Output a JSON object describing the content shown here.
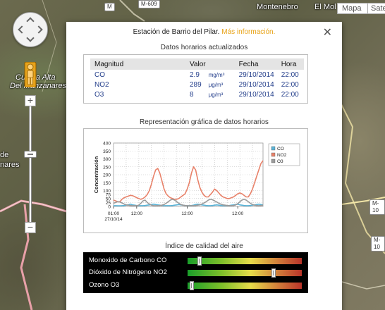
{
  "map": {
    "labels": {
      "montenebro": "Montenebro",
      "el_mol": "El Mol",
      "alta": "Cuesta Alta",
      "manzanares": "Del Manzanares",
      "de": "de",
      "nares": "nares"
    },
    "badges": {
      "m609": "M-609",
      "m10a": "M-10",
      "m10b": "M-10",
      "mtop": "M"
    },
    "map_types": {
      "mapa": "Mapa",
      "satelite": "Sate"
    },
    "zoom": {
      "plus": "+",
      "minus": "−"
    }
  },
  "infowindow": {
    "title": "Estación de Barrio del Pilar.",
    "more_info_link": "Más información.",
    "close_symbol": "✕",
    "hourly": {
      "section_title": "Datos horarios actualizados",
      "headers": {
        "magnitude": "Magnitud",
        "value": "Valor",
        "date": "Fecha",
        "hour": "Hora"
      },
      "rows": [
        {
          "magnitude": "CO",
          "value": "2.9",
          "unit": "mg/m³",
          "date": "29/10/2014",
          "hour": "22:00"
        },
        {
          "magnitude": "NO2",
          "value": "289",
          "unit": "μg/m³",
          "date": "29/10/2014",
          "hour": "22:00"
        },
        {
          "magnitude": "O3",
          "value": "8",
          "unit": "μg/m³",
          "date": "29/10/2014",
          "hour": "22:00"
        }
      ]
    },
    "chart_section_title": "Representación gráfica de datos horarios",
    "quality": {
      "section_title": "Índice de calidad del aire",
      "rows": [
        {
          "label": "Monoxido de Carbono CO",
          "level": 0.09
        },
        {
          "label": "Dióxido de Nitrógeno NO2",
          "level": 0.76
        },
        {
          "label": "Ozono O3",
          "level": 0.02
        }
      ]
    }
  },
  "colors": {
    "co": "#5ab4d8",
    "no2": "#e8826a",
    "o3": "#9a9a9a",
    "link": "#e8a317",
    "table_text": "#223d8a"
  },
  "chart_data": {
    "type": "line",
    "ylabel": "Concentración",
    "ylim": [
      0,
      400
    ],
    "yticks": [
      0,
      25,
      50,
      75,
      100,
      150,
      200,
      250,
      300,
      350,
      400
    ],
    "xlim": [
      0,
      72
    ],
    "xticks": [
      {
        "x": 0,
        "label": "01:00"
      },
      {
        "x": 11,
        "label": "12:00"
      },
      {
        "x": 35,
        "label": "12:00"
      },
      {
        "x": 59,
        "label": "12:00"
      }
    ],
    "x_date_label": "27/10/14",
    "legend": [
      "CO",
      "NO2",
      "O3"
    ],
    "legend_position": "right",
    "grid": true,
    "series": [
      {
        "name": "NO2",
        "values": [
          40,
          35,
          30,
          30,
          45,
          55,
          60,
          65,
          70,
          68,
          62,
          55,
          50,
          45,
          50,
          60,
          75,
          100,
          140,
          190,
          230,
          240,
          210,
          160,
          110,
          80,
          65,
          55,
          50,
          45,
          45,
          50,
          60,
          70,
          80,
          110,
          150,
          210,
          250,
          230,
          170,
          120,
          90,
          70,
          60,
          60,
          75,
          90,
          110,
          100,
          85,
          70,
          60,
          55,
          50,
          50,
          55,
          60,
          70,
          80,
          85,
          80,
          70,
          60,
          60,
          80,
          110,
          150,
          190,
          230,
          270,
          289
        ]
      },
      {
        "name": "CO",
        "values": [
          5,
          5,
          4,
          4,
          5,
          6,
          8,
          10,
          14,
          10,
          8,
          6,
          5,
          5,
          5,
          6,
          8,
          10,
          12,
          14,
          12,
          10,
          8,
          6,
          5,
          5,
          5,
          5,
          6,
          8,
          10,
          12,
          10,
          8,
          6,
          5,
          5,
          6,
          8,
          12,
          14,
          12,
          10,
          8,
          6,
          5,
          5,
          6,
          8,
          10,
          8,
          6,
          5,
          5,
          5,
          6,
          8,
          10,
          12,
          14,
          10,
          8,
          6,
          5,
          5,
          6,
          8,
          10,
          12,
          14,
          12,
          10
        ]
      },
      {
        "name": "O3",
        "values": [
          20,
          25,
          30,
          28,
          22,
          15,
          10,
          8,
          6,
          5,
          5,
          5,
          8,
          20,
          35,
          40,
          25,
          15,
          8,
          5,
          5,
          5,
          6,
          8,
          12,
          20,
          30,
          40,
          45,
          40,
          30,
          20,
          12,
          8,
          6,
          5,
          5,
          5,
          5,
          6,
          8,
          10,
          15,
          22,
          30,
          40,
          45,
          42,
          35,
          28,
          20,
          14,
          10,
          8,
          6,
          5,
          5,
          6,
          10,
          18,
          30,
          40,
          45,
          40,
          30,
          20,
          12,
          8,
          6,
          5,
          6,
          8
        ]
      }
    ]
  }
}
